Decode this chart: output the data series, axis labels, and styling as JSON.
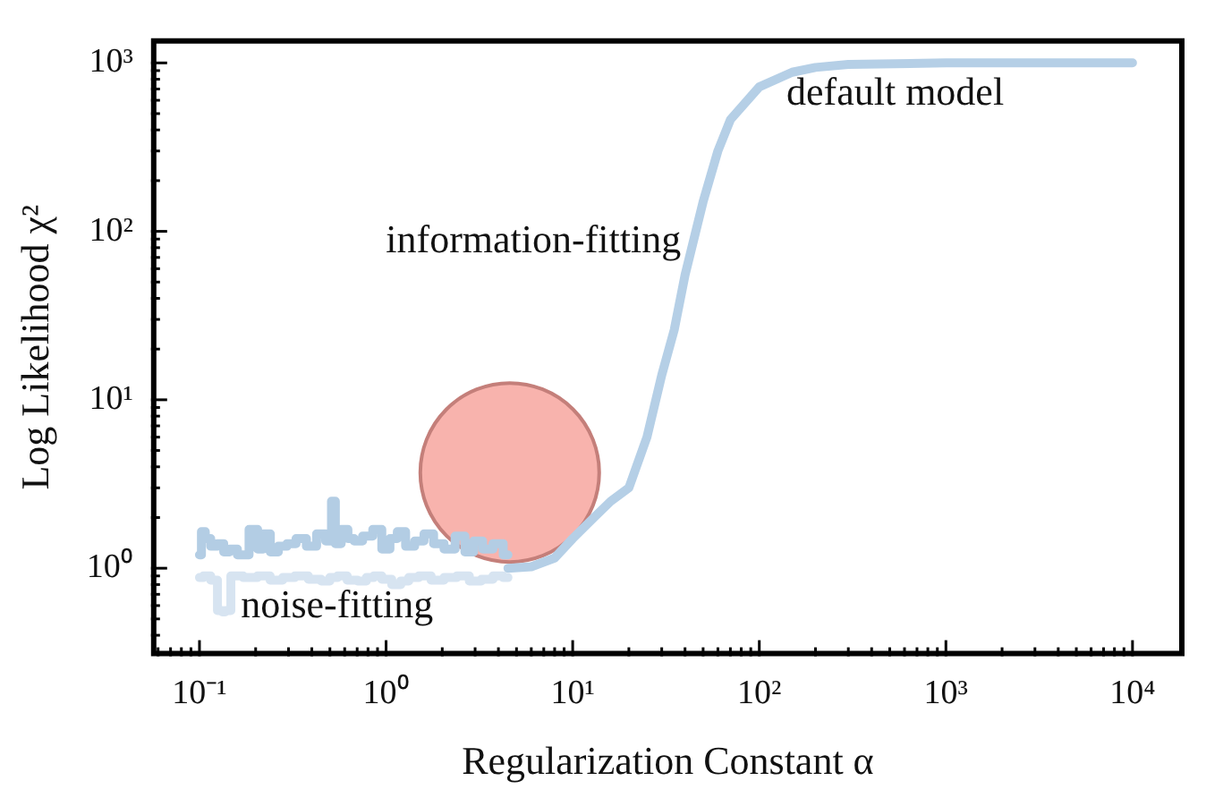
{
  "chart_data": {
    "type": "line",
    "xlabel": "Regularization Constant α",
    "ylabel": "Log Likelihood χ²",
    "log": "xy",
    "grid": false,
    "legend": false,
    "xlim": [
      0.055,
      19000
    ],
    "ylim": [
      0.33,
      1400
    ],
    "xticks": [
      {
        "value": 0.1,
        "label": "10⁻¹"
      },
      {
        "value": 1,
        "label": "10⁰"
      },
      {
        "value": 10,
        "label": "10¹"
      },
      {
        "value": 100,
        "label": "10²"
      },
      {
        "value": 1000,
        "label": "10³"
      },
      {
        "value": 10000,
        "label": "10⁴"
      }
    ],
    "yticks": [
      {
        "value": 1,
        "label": "10⁰"
      },
      {
        "value": 10,
        "label": "10¹"
      },
      {
        "value": 100,
        "label": "10²"
      },
      {
        "value": 1000,
        "label": "10³"
      }
    ],
    "series": [
      {
        "type": "step",
        "color": "#d7e4f1",
        "x": [
          0.1,
          0.11,
          0.12,
          0.13,
          0.135,
          0.14,
          0.155,
          0.19,
          0.22,
          0.26,
          0.3,
          0.35,
          0.42,
          0.48,
          0.52,
          0.58,
          0.66,
          0.75,
          0.82,
          0.9,
          1.0,
          1.15,
          1.25,
          1.4,
          1.6,
          1.9,
          2.2,
          2.6,
          3.0,
          3.5,
          4.0,
          4.5
        ],
        "values": [
          0.88,
          0.9,
          0.85,
          0.56,
          0.55,
          0.56,
          0.9,
          0.88,
          0.9,
          0.85,
          0.88,
          0.9,
          0.86,
          0.84,
          0.88,
          0.9,
          0.85,
          0.84,
          0.88,
          0.9,
          0.86,
          0.8,
          0.84,
          0.88,
          0.9,
          0.85,
          0.88,
          0.9,
          0.84,
          0.86,
          0.9,
          0.88
        ]
      },
      {
        "type": "step",
        "color": "#b3cde4",
        "x": [
          0.1,
          0.105,
          0.11,
          0.12,
          0.13,
          0.14,
          0.15,
          0.17,
          0.2,
          0.21,
          0.23,
          0.25,
          0.28,
          0.31,
          0.35,
          0.4,
          0.45,
          0.5,
          0.52,
          0.55,
          0.6,
          0.65,
          0.7,
          0.8,
          0.9,
          1.0,
          1.1,
          1.2,
          1.35,
          1.5,
          1.7,
          1.9,
          2.2,
          2.5,
          2.8,
          3.1,
          3.5,
          4.0,
          4.5
        ],
        "values": [
          1.2,
          1.65,
          1.5,
          1.35,
          1.4,
          1.25,
          1.3,
          1.2,
          1.7,
          1.3,
          1.6,
          1.25,
          1.35,
          1.4,
          1.5,
          1.35,
          1.6,
          1.45,
          2.5,
          1.4,
          1.7,
          1.5,
          1.45,
          1.55,
          1.7,
          1.3,
          1.5,
          1.65,
          1.35,
          1.45,
          1.6,
          1.4,
          1.3,
          1.55,
          1.25,
          1.45,
          1.3,
          1.4,
          1.2
        ]
      },
      {
        "color": "#b5cfe6",
        "x": [
          4.5,
          6,
          8,
          10,
          13,
          16,
          20,
          25,
          30,
          35,
          40,
          50,
          60,
          70,
          100,
          150,
          200,
          300,
          1000,
          10000
        ],
        "values": [
          1.0,
          1.02,
          1.15,
          1.5,
          2.0,
          2.5,
          3.0,
          6,
          14,
          26,
          55,
          150,
          300,
          460,
          720,
          880,
          940,
          980,
          1000,
          1000
        ]
      },
      {
        "type": "bubble",
        "color": "#f8b3ad",
        "x": [
          4.6
        ],
        "values": [
          3.7
        ],
        "sizes": [
          1
        ]
      }
    ],
    "annotations": [
      "default model",
      "information-fitting",
      "noise-fitting"
    ]
  }
}
